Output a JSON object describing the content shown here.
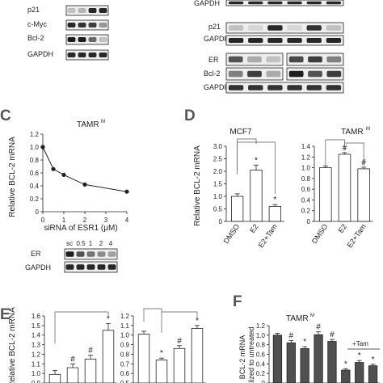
{
  "figure": {
    "panels": {
      "C": "C",
      "D": "D",
      "E": "E",
      "F": "F"
    },
    "top_left_blot": {
      "labels": [
        "p21",
        "c-Myc",
        "Bcl-2",
        "GAPDH"
      ]
    },
    "top_right_blot": {
      "labels": [
        "GAPDH",
        "p21",
        "GAPDH",
        "ER",
        "Bcl-2",
        "GAPDH"
      ]
    },
    "panel_c_blot": {
      "labels": [
        "ER",
        "GAPDH"
      ],
      "lane_labels": [
        "sc",
        "0.5",
        "1",
        "2",
        "4"
      ]
    }
  },
  "chart_data": [
    {
      "panel": "C",
      "type": "line",
      "title": "TAMR",
      "title_sup": "M",
      "xlabel": "siRNA of ESR1 (μM)",
      "ylabel": "Relative BCL-2 mRNA",
      "x": [
        0,
        0.5,
        1,
        2,
        4
      ],
      "y": [
        1.0,
        0.66,
        0.57,
        0.42,
        0.31
      ],
      "err": [
        0.05,
        0.02,
        0.02,
        0.02,
        0.02
      ],
      "xlim": [
        0,
        4
      ],
      "ylim": [
        0,
        1.2
      ],
      "xticks": [
        "0",
        "1",
        "2",
        "3",
        "4"
      ],
      "yticks": [
        "0",
        "0.2",
        "0.4",
        "0.6",
        "0.8",
        "1.0",
        "1.2"
      ]
    },
    {
      "panel": "D-left",
      "type": "bar",
      "title": "MCF7",
      "ylabel": "Relative BCL-2 mRNA",
      "categories": [
        "DMSO",
        "E2",
        "E2+Tam"
      ],
      "values": [
        1.0,
        2.05,
        0.6
      ],
      "err": [
        0.1,
        0.2,
        0.07
      ],
      "marks": [
        "",
        "*",
        "*"
      ],
      "ylim": [
        0,
        3.0
      ],
      "yticks": [
        "0",
        "0.5",
        "1.0",
        "1.5",
        "2.0",
        "2.5",
        "3.0"
      ]
    },
    {
      "panel": "D-right",
      "type": "bar",
      "title": "TAMR",
      "title_sup": "M",
      "categories": [
        "DMSO",
        "E2",
        "E2+Tam"
      ],
      "values": [
        1.0,
        1.25,
        0.98
      ],
      "err": [
        0.03,
        0.03,
        0.03
      ],
      "marks": [
        "",
        "#",
        "#"
      ],
      "ylim": [
        0,
        1.4
      ],
      "yticks": [
        "0",
        "0.2",
        "0.4",
        "0.6",
        "0.8",
        "1.0",
        "1.2",
        "1.4"
      ]
    },
    {
      "panel": "E-left",
      "type": "bar",
      "ylabel": "Relative BCL-2 mRNA",
      "values": [
        0.99,
        1.06,
        1.15,
        1.45
      ],
      "err": [
        0.04,
        0.04,
        0.04,
        0.07
      ],
      "marks": [
        "",
        "#",
        "#",
        "*"
      ],
      "ylim": [
        0.9,
        1.6
      ],
      "yticks": [
        "0.9",
        "1.0",
        "1.1",
        "1.2",
        "1.3",
        "1.4",
        "1.5",
        "1.6"
      ]
    },
    {
      "panel": "E-right",
      "type": "bar",
      "values": [
        1.01,
        0.74,
        0.86,
        1.07
      ],
      "err": [
        0.03,
        0.02,
        0.03,
        0.03
      ],
      "marks": [
        "",
        "*",
        "#",
        "*"
      ],
      "ylim": [
        0.5,
        1.2
      ],
      "yticks": [
        "0.5",
        "0.6",
        "0.7",
        "0.8",
        "0.9",
        "1.0",
        "1.1",
        "1.2"
      ]
    },
    {
      "panel": "F",
      "type": "bar",
      "title": "TAMR",
      "title_sup": "M",
      "ylabel": "BCL-2 mRNA",
      "ylabel2": "nalized to untreated",
      "values": [
        1.0,
        0.84,
        0.72,
        1.01,
        0.87,
        0.27,
        0.43,
        0.36
      ],
      "err": [
        0.04,
        0.05,
        0.04,
        0.06,
        0.04,
        0.03,
        0.04,
        0.03
      ],
      "marks": [
        "",
        "#",
        "*",
        "#",
        "#",
        "*",
        "*",
        "*"
      ],
      "group_label": "+Tam",
      "ylim": [
        0,
        1.2
      ],
      "yticks": [
        "0",
        "0.2",
        "0.4",
        "0.6",
        "0.8",
        "1.0",
        "1.2"
      ]
    }
  ]
}
